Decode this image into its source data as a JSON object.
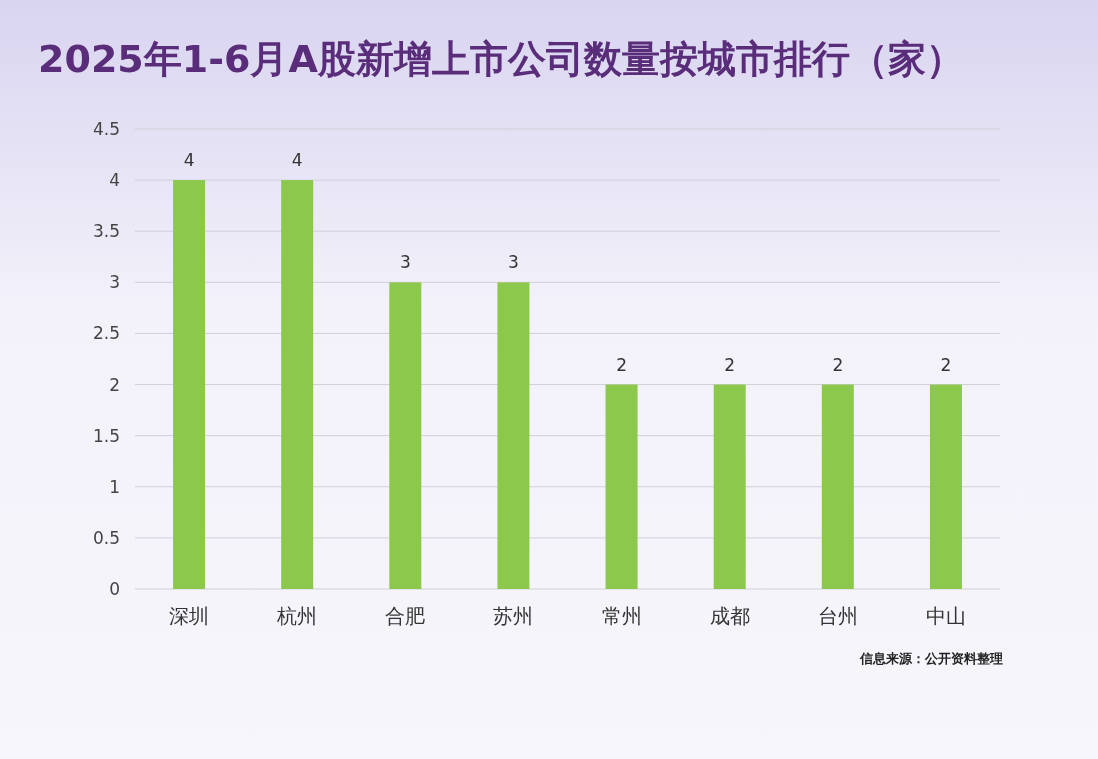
{
  "chart_data": {
    "type": "bar",
    "title": "2025年1-6月A股新增上市公司数量按城市排行（家）",
    "categories": [
      "深圳",
      "杭州",
      "合肥",
      "苏州",
      "常州",
      "成都",
      "台州",
      "中山"
    ],
    "values": [
      4,
      4,
      3,
      3,
      2,
      2,
      2,
      2
    ],
    "color": "#8cc84b",
    "ylim": [
      0,
      4.5
    ],
    "yticks": [
      0,
      0.5,
      1,
      1.5,
      2,
      2.5,
      3,
      3.5,
      4,
      4.5
    ],
    "grid": "y",
    "data_labels": true,
    "annotations": [
      "信息来源：公开资料整理"
    ]
  }
}
